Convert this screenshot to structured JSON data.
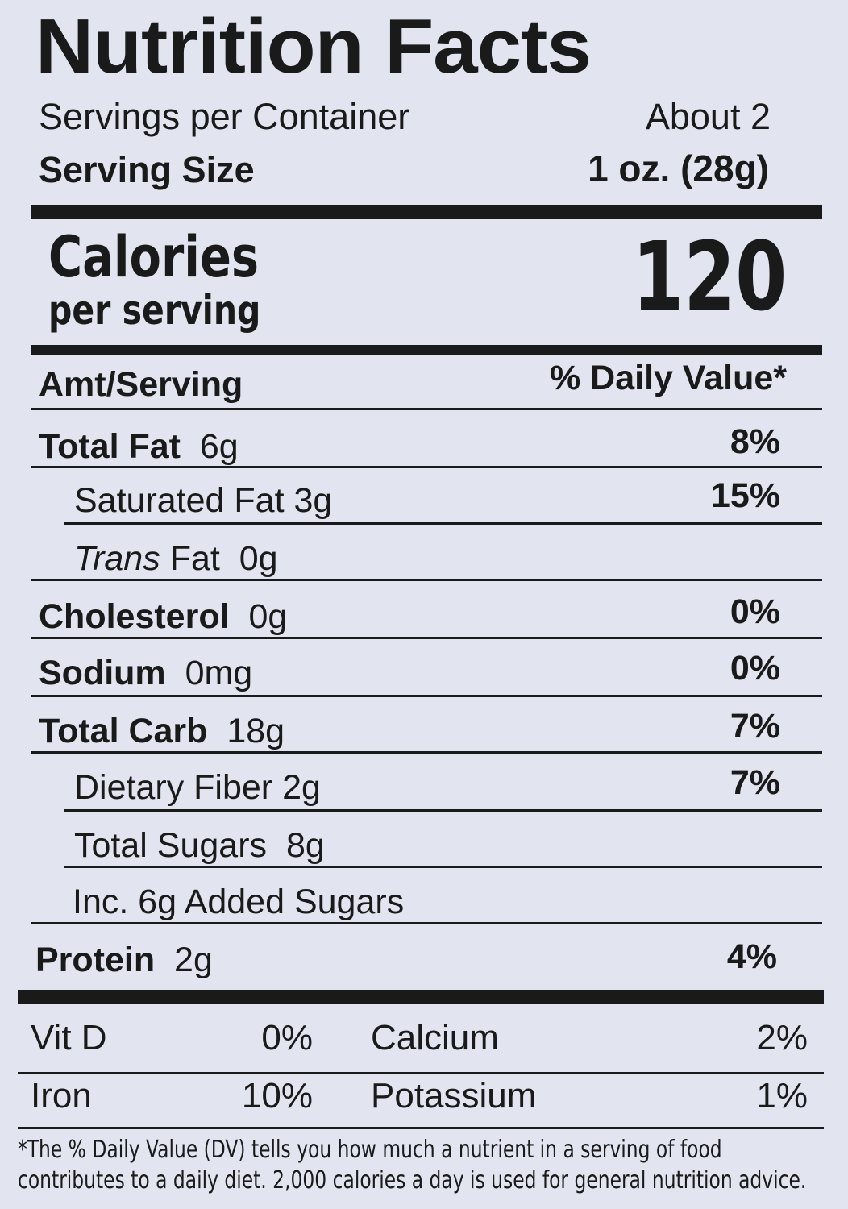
{
  "title": "Nutrition Facts",
  "servings": {
    "label": "Servings per Container",
    "value": "About 2"
  },
  "serving_size": {
    "label": "Serving Size",
    "value": "1 oz. (28g)"
  },
  "calories": {
    "label": "Calories",
    "sublabel": "per serving",
    "value": "120"
  },
  "header": {
    "amt_label": "Amt/Serving",
    "dv_label": "% Daily Value*"
  },
  "nutrients": [
    {
      "name": "Total Fat",
      "amount": "6g",
      "dv": "8%"
    },
    {
      "name": "Saturated Fat",
      "amount": "3g",
      "dv": "15%"
    },
    {
      "name": "Trans",
      "name_suffix": "Fat",
      "amount": "0g",
      "dv": ""
    },
    {
      "name": "Cholesterol",
      "amount": "0g",
      "dv": "0%"
    },
    {
      "name": "Sodium",
      "amount": "0mg",
      "dv": "0%"
    },
    {
      "name": "Total Carb",
      "amount": "18g",
      "dv": "7%"
    },
    {
      "name": "Dietary Fiber",
      "amount": "2g",
      "dv": "7%"
    },
    {
      "name": "Total Sugars",
      "amount": "8g",
      "dv": ""
    },
    {
      "name": "Inc. 6g Added Sugars",
      "amount": "",
      "dv": ""
    },
    {
      "name": "Protein",
      "amount": "2g",
      "dv": "4%"
    }
  ],
  "vitamins": [
    {
      "name": "Vit D",
      "dv": "0%"
    },
    {
      "name": "Calcium",
      "dv": "2%"
    },
    {
      "name": "Iron",
      "dv": "10%"
    },
    {
      "name": "Potassium",
      "dv": "1%"
    }
  ],
  "footnote": {
    "line1": "*The % Daily Value (DV) tells you how much a nutrient in a serving of food",
    "line2": "contributes to a daily diet. 2,000 calories a day is used for general nutrition advice."
  }
}
